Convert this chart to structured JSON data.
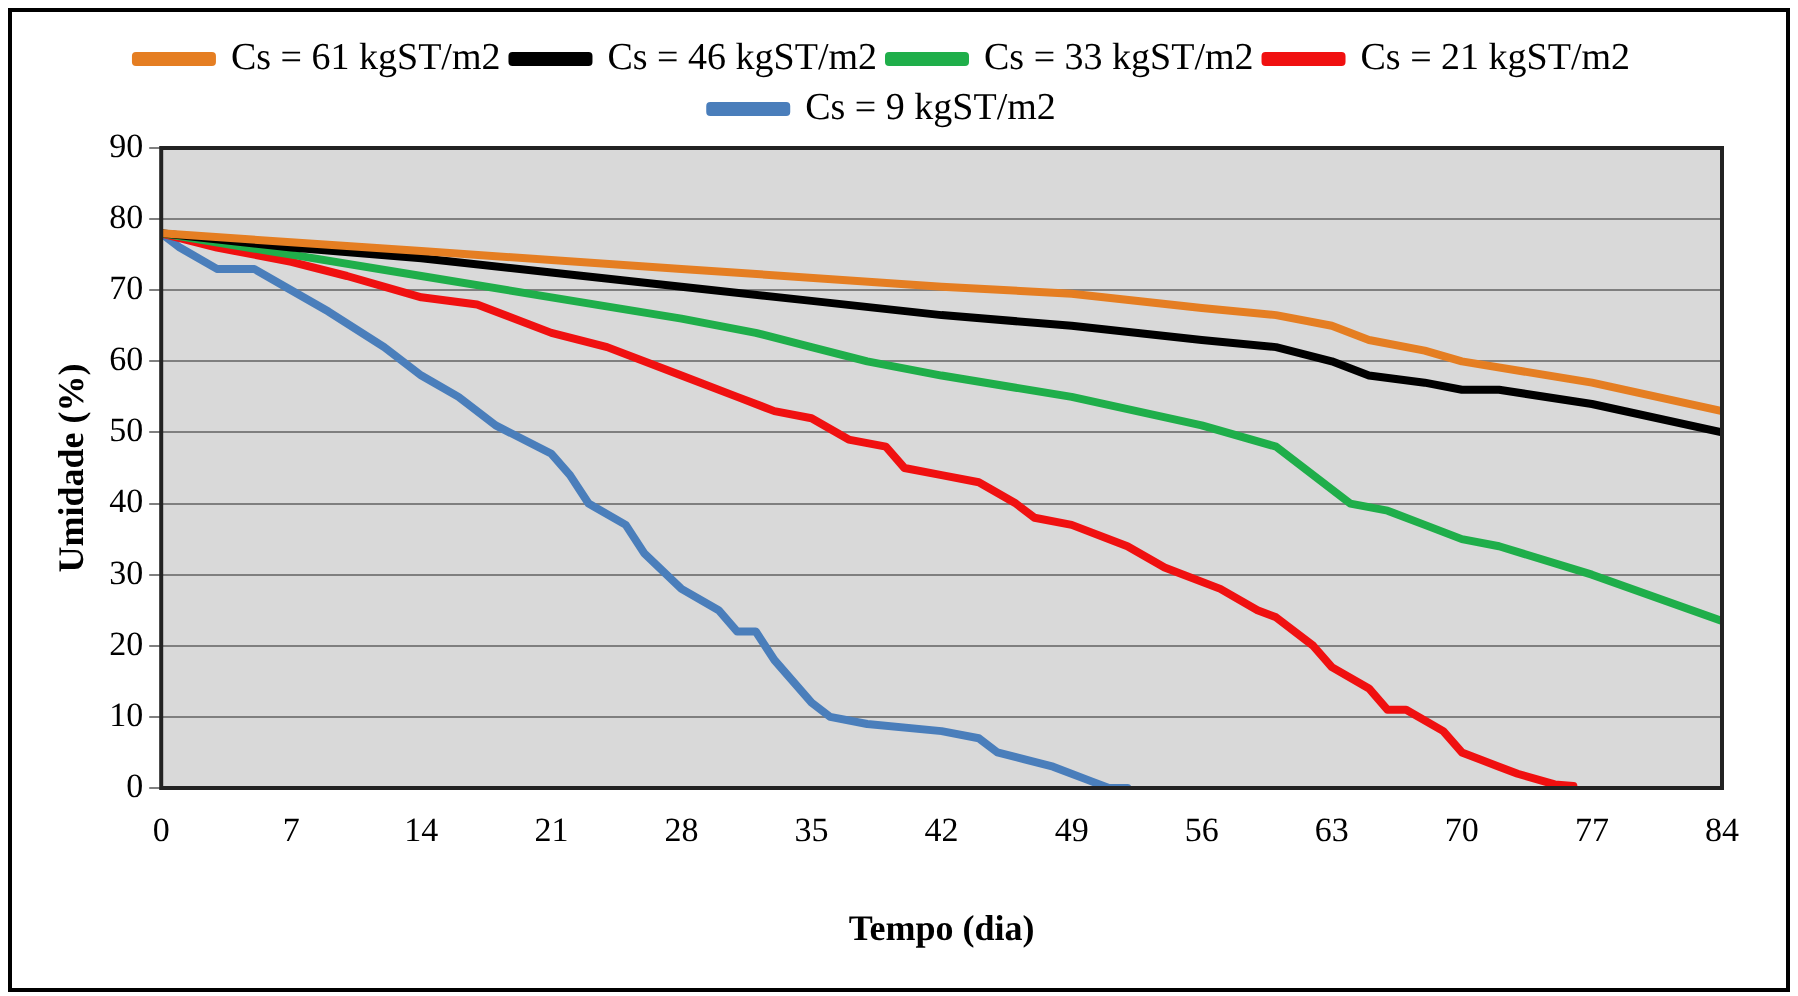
{
  "chart_data": {
    "type": "line",
    "xlabel": "Tempo (dia)",
    "ylabel": "Umidade (%)",
    "xlim": [
      0,
      84
    ],
    "xticks": [
      0,
      7,
      14,
      21,
      28,
      35,
      42,
      49,
      56,
      63,
      70,
      77,
      84
    ],
    "ylim": [
      0,
      90
    ],
    "yticks": [
      0,
      10,
      20,
      30,
      40,
      50,
      60,
      70,
      80,
      90
    ],
    "grid": "y",
    "legend": "top",
    "marker": "none",
    "line_style": "solid",
    "series": [
      {
        "name": "Cs = 61 kgST/m2",
        "color": "#e57e22",
        "x": [
          0,
          14,
          28,
          42,
          49,
          56,
          60,
          63,
          65,
          68,
          70,
          77,
          84
        ],
        "values": [
          78,
          75.5,
          73,
          70.5,
          69.5,
          67.5,
          66.5,
          65,
          63,
          61.5,
          60,
          57,
          53
        ]
      },
      {
        "name": "Cs = 46 kgST/m2",
        "color": "#000000",
        "x": [
          0,
          7,
          14,
          21,
          28,
          35,
          42,
          49,
          56,
          60,
          63,
          65,
          68,
          70,
          72,
          77,
          84
        ],
        "values": [
          78,
          76,
          74.5,
          72.5,
          70.5,
          68.5,
          66.5,
          65,
          63,
          62,
          60,
          58,
          57,
          56,
          56,
          54,
          50
        ]
      },
      {
        "name": "Cs = 33 kgST/m2",
        "color": "#1fae4a",
        "x": [
          0,
          7,
          14,
          21,
          28,
          32,
          35,
          38,
          42,
          49,
          56,
          60,
          62,
          64,
          66,
          68,
          70,
          72,
          77,
          84
        ],
        "values": [
          78,
          75,
          72,
          69,
          66,
          64,
          62,
          60,
          58,
          55,
          51,
          48,
          44,
          40,
          39,
          37,
          35,
          34,
          30,
          23.5
        ]
      },
      {
        "name": "Cs = 21 kgST/m2",
        "color": "#f01010",
        "x": [
          0,
          3,
          7,
          10,
          14,
          17,
          21,
          24,
          28,
          31,
          33,
          35,
          37,
          39,
          40,
          42,
          44,
          46,
          47,
          49,
          52,
          54,
          57,
          59,
          60,
          62,
          63,
          65,
          66,
          67,
          69,
          70,
          72,
          73,
          75,
          76
        ],
        "values": [
          78,
          76,
          74,
          72,
          69,
          68,
          64,
          62,
          58,
          55,
          53,
          52,
          49,
          48,
          45,
          44,
          43,
          40,
          38,
          37,
          34,
          31,
          28,
          25,
          24,
          20,
          17,
          14,
          11,
          11,
          8,
          5,
          3,
          2,
          0.5,
          0.3
        ]
      },
      {
        "name": "Cs = 9 kgST/m2",
        "color": "#4a7ebb",
        "x": [
          0,
          1,
          3,
          5,
          7,
          9,
          12,
          14,
          16,
          18,
          21,
          22,
          23,
          25,
          26,
          28,
          30,
          31,
          32,
          33,
          35,
          36,
          38,
          42,
          44,
          45,
          48,
          50,
          51,
          52
        ],
        "values": [
          78,
          76,
          73,
          73,
          70,
          67,
          62,
          58,
          55,
          51,
          47,
          44,
          40,
          37,
          33,
          28,
          25,
          22,
          22,
          18,
          12,
          10,
          9,
          8,
          7,
          5,
          3,
          1,
          0,
          0
        ]
      }
    ]
  }
}
